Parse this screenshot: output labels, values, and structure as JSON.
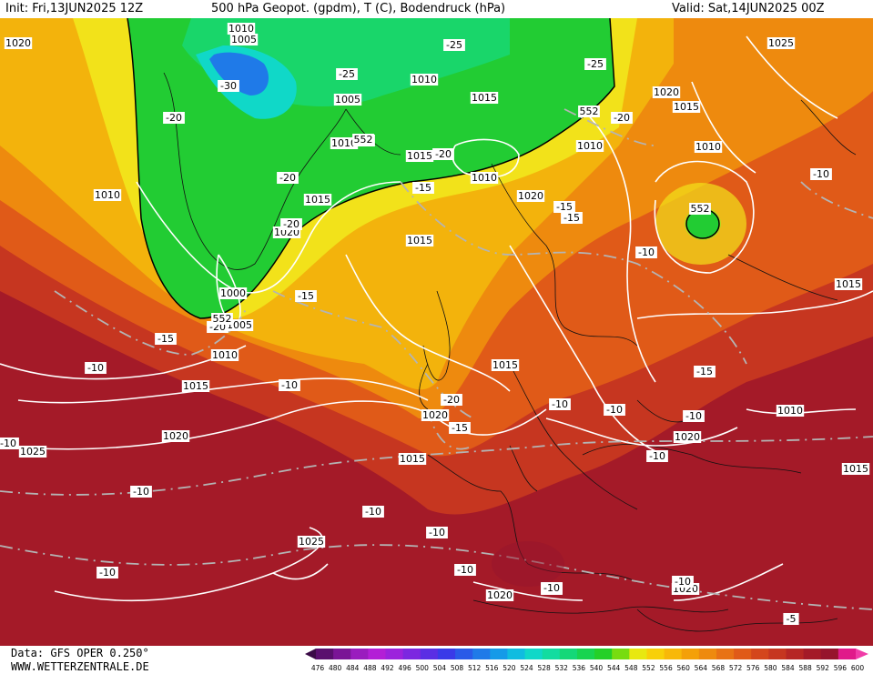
{
  "header": {
    "init": "Init: Fri,13JUN2025 12Z",
    "title": "500 hPa Geopot. (gpdm), T (C), Bodendruck (hPa)",
    "valid": "Valid: Sat,14JUN2025 00Z"
  },
  "footer": {
    "data_source": "Data: GFS OPER 0.250°",
    "website": "WWW.WETTERZENTRALE.DE"
  },
  "colorbar": {
    "ticks": [
      "476",
      "480",
      "484",
      "488",
      "492",
      "496",
      "500",
      "504",
      "508",
      "512",
      "516",
      "520",
      "524",
      "528",
      "532",
      "536",
      "540",
      "544",
      "548",
      "552",
      "556",
      "560",
      "564",
      "568",
      "572",
      "576",
      "580",
      "584",
      "588",
      "592",
      "596",
      "600"
    ],
    "colors": [
      "#3a0a46",
      "#5a0f6e",
      "#7a1596",
      "#9a1cbe",
      "#b31fd6",
      "#9c22dc",
      "#7c27e0",
      "#5a2ee4",
      "#3a3ae8",
      "#2a5ae8",
      "#1f7ae8",
      "#159ae8",
      "#10bce0",
      "#10d8c8",
      "#12dca0",
      "#14d878",
      "#18d450",
      "#24d028",
      "#78dc10",
      "#e8e810",
      "#f8d008",
      "#f8b808",
      "#f4a008",
      "#ee8a0e",
      "#e87214",
      "#e05a18",
      "#d4461c",
      "#c63620",
      "#b62624",
      "#a41a28",
      "#96142c",
      "#e01a8a",
      "#f03ca8"
    ]
  },
  "map": {
    "height_zones": [
      {
        "level": "548",
        "color": "#22cc33"
      },
      {
        "level": "552-556",
        "color": "#f2e21a"
      },
      {
        "level": "560-564",
        "color": "#f3b30c"
      },
      {
        "level": "568-572",
        "color": "#ee8a0e"
      },
      {
        "level": "576-580",
        "color": "#e05a18"
      },
      {
        "level": "584-588",
        "color": "#c63620"
      },
      {
        "level": "592-596",
        "color": "#a41a28"
      }
    ],
    "pressure_labels": [
      "1010",
      "1005",
      "1020",
      "1010",
      "1005",
      "1010",
      "1015",
      "1010",
      "1015",
      "1020",
      "1010",
      "1015",
      "1020",
      "1025",
      "1010",
      "1015",
      "1020",
      "1000",
      "1005",
      "1010",
      "1015",
      "1020",
      "1015",
      "1020",
      "1015",
      "1025",
      "1025",
      "1020",
      "1010",
      "1015",
      "1015",
      "1020",
      "1020",
      "1010",
      "101",
      "1015"
    ],
    "temp_labels": [
      "-30",
      "-25",
      "-25",
      "-25",
      "-20",
      "-20",
      "-20",
      "-20",
      "-15",
      "-20",
      "-20",
      "-15",
      "-15",
      "-10",
      "-10",
      "-15",
      "-15",
      "-10",
      "-10",
      "-10",
      "-10",
      "-10",
      "-10",
      "-10",
      "-10",
      "-10",
      "-15",
      "-10",
      "-20",
      "-10",
      "-10",
      "-5",
      "-10",
      "-10",
      "-15",
      "-10"
    ],
    "height_labels": [
      "552",
      "552",
      "552",
      "552"
    ]
  }
}
